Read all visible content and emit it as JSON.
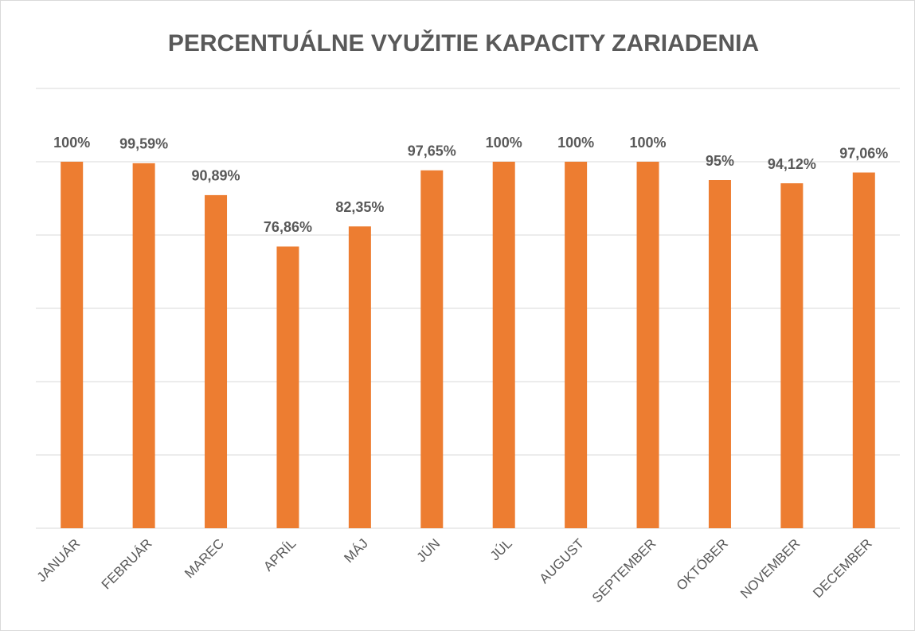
{
  "chart_data": {
    "type": "bar",
    "title": "PERCENTUÁLNE VYUŽITIE KAPACITY ZARIADENIA",
    "categories": [
      "JANUÁR",
      "FEBRUÁR",
      "MAREC",
      "APRÍL",
      "MÁJ",
      "JÚN",
      "JÚL",
      "AUGUST",
      "SEPTEMBER",
      "OKTÓBER",
      "NOVEMBER",
      "DECEMBER"
    ],
    "values": [
      100,
      99.59,
      90.89,
      76.86,
      82.35,
      97.65,
      100,
      100,
      100,
      95,
      94.12,
      97.06
    ],
    "value_labels": [
      "100%",
      "99,59%",
      "90,89%",
      "76,86%",
      "82,35%",
      "97,65%",
      "100%",
      "100%",
      "100%",
      "95%",
      "94,12%",
      "97,06%"
    ],
    "color": "#ed7d31",
    "ylim": [
      0,
      120
    ],
    "yticks": [
      0,
      20,
      40,
      60,
      80,
      100,
      120
    ],
    "grid": true,
    "y_tick_labels": false
  }
}
